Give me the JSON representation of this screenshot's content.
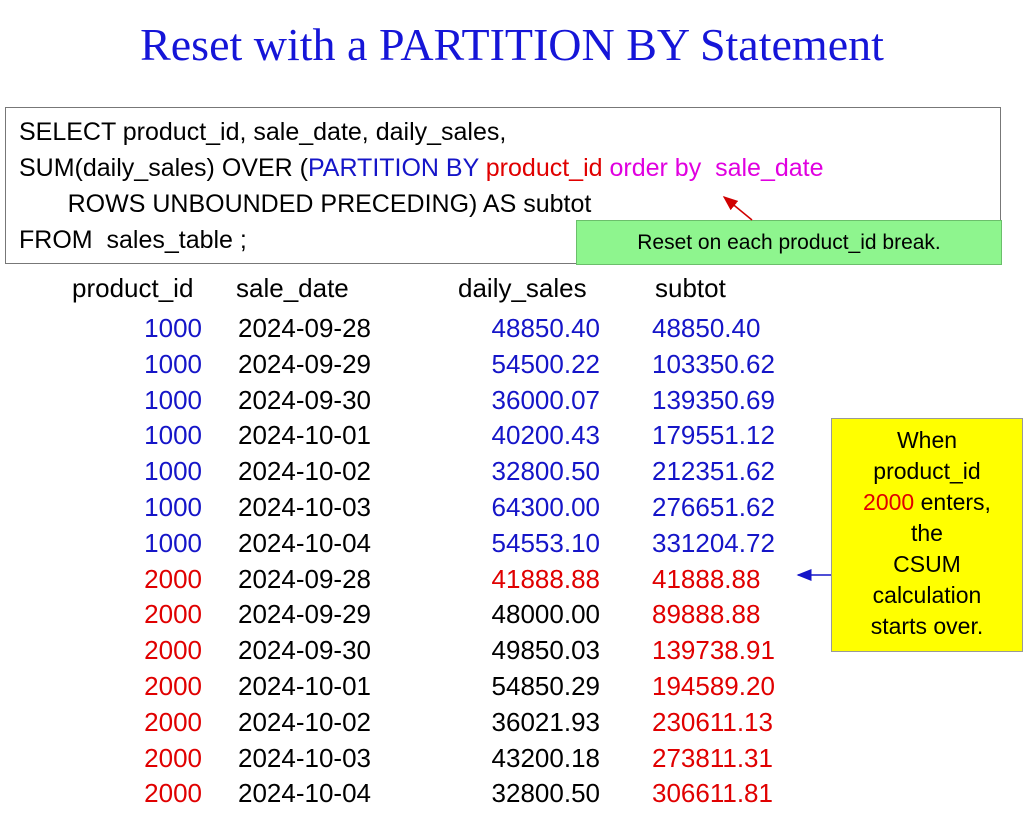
{
  "title": "Reset with a PARTITION BY Statement",
  "code": {
    "lines": [
      [
        {
          "text": "SELECT product_id, sale_date, daily_sales,",
          "color": "#000000"
        }
      ],
      [
        {
          "text": "SUM(daily_sales) OVER (",
          "color": "#000000"
        },
        {
          "text": "PARTITION BY ",
          "color": "#1515c8"
        },
        {
          "text": "product_id ",
          "color": "#e00000"
        },
        {
          "text": "order by  sale_date",
          "color": "#e000e0"
        }
      ],
      [
        {
          "text": "       ROWS UNBOUNDED PRECEDING) AS subtot",
          "color": "#000000"
        }
      ],
      [
        {
          "text": "FROM  sales_table ;",
          "color": "#000000"
        }
      ]
    ]
  },
  "note": "Reset on each product_id break.",
  "table": {
    "header": [
      "product_id",
      "sale_date",
      "daily_sales",
      "subtot"
    ],
    "rows": [
      {
        "cells": [
          "1000",
          "2024-09-28",
          "48850.40",
          "48850.40"
        ],
        "colors": [
          "#1515c8",
          "#000000",
          "#1515c8",
          "#1515c8"
        ]
      },
      {
        "cells": [
          "1000",
          "2024-09-29",
          "54500.22",
          "103350.62"
        ],
        "colors": [
          "#1515c8",
          "#000000",
          "#1515c8",
          "#1515c8"
        ]
      },
      {
        "cells": [
          "1000",
          "2024-09-30",
          "36000.07",
          "139350.69"
        ],
        "colors": [
          "#1515c8",
          "#000000",
          "#1515c8",
          "#1515c8"
        ]
      },
      {
        "cells": [
          "1000",
          "2024-10-01",
          "40200.43",
          "179551.12"
        ],
        "colors": [
          "#1515c8",
          "#000000",
          "#1515c8",
          "#1515c8"
        ]
      },
      {
        "cells": [
          "1000",
          "2024-10-02",
          "32800.50",
          "212351.62"
        ],
        "colors": [
          "#1515c8",
          "#000000",
          "#1515c8",
          "#1515c8"
        ]
      },
      {
        "cells": [
          "1000",
          "2024-10-03",
          "64300.00",
          "276651.62"
        ],
        "colors": [
          "#1515c8",
          "#000000",
          "#1515c8",
          "#1515c8"
        ]
      },
      {
        "cells": [
          "1000",
          "2024-10-04",
          "54553.10",
          "331204.72"
        ],
        "colors": [
          "#1515c8",
          "#000000",
          "#1515c8",
          "#1515c8"
        ]
      },
      {
        "cells": [
          "2000",
          "2024-09-28",
          "41888.88",
          "41888.88"
        ],
        "colors": [
          "#e00000",
          "#000000",
          "#e00000",
          "#e00000"
        ]
      },
      {
        "cells": [
          "2000",
          "2024-09-29",
          "48000.00",
          "89888.88"
        ],
        "colors": [
          "#e00000",
          "#000000",
          "#000000",
          "#e00000"
        ]
      },
      {
        "cells": [
          "2000",
          "2024-09-30",
          "49850.03",
          "139738.91"
        ],
        "colors": [
          "#e00000",
          "#000000",
          "#000000",
          "#e00000"
        ]
      },
      {
        "cells": [
          "2000",
          "2024-10-01",
          "54850.29",
          "194589.20"
        ],
        "colors": [
          "#e00000",
          "#000000",
          "#000000",
          "#e00000"
        ]
      },
      {
        "cells": [
          "2000",
          "2024-10-02",
          "36021.93",
          "230611.13"
        ],
        "colors": [
          "#e00000",
          "#000000",
          "#000000",
          "#e00000"
        ]
      },
      {
        "cells": [
          "2000",
          "2024-10-03",
          "43200.18",
          "273811.31"
        ],
        "colors": [
          "#e00000",
          "#000000",
          "#000000",
          "#e00000"
        ]
      },
      {
        "cells": [
          "2000",
          "2024-10-04",
          "32800.50",
          "306611.81"
        ],
        "colors": [
          "#e00000",
          "#000000",
          "#000000",
          "#e00000"
        ]
      }
    ]
  },
  "callout": {
    "lines": [
      [
        {
          "text": "When",
          "color": "#000000"
        }
      ],
      [
        {
          "text": "product_id",
          "color": "#000000"
        }
      ],
      [
        {
          "text": "2000",
          "color": "#e00000"
        },
        {
          "text": " enters,",
          "color": "#000000"
        }
      ],
      [
        {
          "text": "the",
          "color": "#000000"
        }
      ],
      [
        {
          "text": "CSUM",
          "color": "#000000"
        }
      ],
      [
        {
          "text": "calculation",
          "color": "#000000"
        }
      ],
      [
        {
          "text": "starts over.",
          "color": "#000000"
        }
      ]
    ]
  }
}
